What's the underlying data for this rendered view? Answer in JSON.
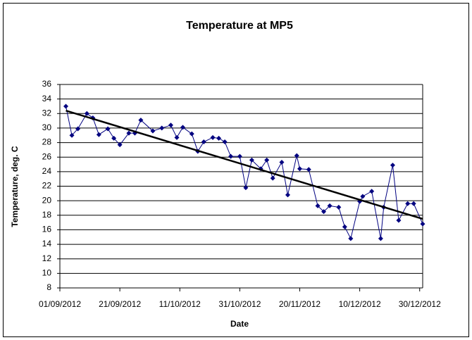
{
  "chart_data": {
    "type": "line",
    "title": "Temperature at MP5",
    "x_label": "Date",
    "y_label": "Temperature, deg. C",
    "x": [
      "2012-09-03",
      "2012-09-05",
      "2012-09-07",
      "2012-09-10",
      "2012-09-12",
      "2012-09-14",
      "2012-09-17",
      "2012-09-19",
      "2012-09-21",
      "2012-09-24",
      "2012-09-26",
      "2012-09-28",
      "2012-10-02",
      "2012-10-05",
      "2012-10-08",
      "2012-10-10",
      "2012-10-12",
      "2012-10-15",
      "2012-10-17",
      "2012-10-19",
      "2012-10-22",
      "2012-10-24",
      "2012-10-26",
      "2012-10-28",
      "2012-10-31",
      "2012-11-02",
      "2012-11-04",
      "2012-11-07",
      "2012-11-09",
      "2012-11-11",
      "2012-11-14",
      "2012-11-16",
      "2012-11-19",
      "2012-11-20",
      "2012-11-23",
      "2012-11-26",
      "2012-11-28",
      "2012-11-30",
      "2012-12-03",
      "2012-12-05",
      "2012-12-07",
      "2012-12-10",
      "2012-12-11",
      "2012-12-14",
      "2012-12-17",
      "2012-12-18",
      "2012-12-21",
      "2012-12-23",
      "2012-12-26",
      "2012-12-28",
      "2012-12-31"
    ],
    "series": [
      {
        "color": "#000080",
        "values": [
          33.0,
          29.0,
          29.9,
          32.0,
          31.4,
          29.1,
          29.9,
          28.6,
          27.7,
          29.3,
          29.3,
          31.1,
          29.6,
          30.0,
          30.4,
          28.7,
          30.1,
          29.2,
          26.8,
          28.1,
          28.7,
          28.6,
          28.1,
          26.1,
          26.1,
          21.8,
          25.6,
          24.4,
          25.6,
          23.1,
          25.3,
          20.8,
          26.2,
          24.4,
          24.3,
          19.3,
          18.5,
          19.3,
          19.1,
          16.4,
          14.8,
          19.9,
          20.6,
          21.3,
          14.8,
          19.1,
          24.9,
          17.3,
          19.6,
          19.6,
          16.8
        ]
      }
    ],
    "trendline": {
      "color": "#000000",
      "x": [
        "2012-09-03",
        "2012-12-31"
      ],
      "values": [
        32.4,
        17.5
      ]
    },
    "xlim": [
      "2012-09-01",
      "2012-12-31"
    ],
    "xticks": [
      {
        "value": "2012-09-01",
        "label": "01/09/2012"
      },
      {
        "value": "2012-09-21",
        "label": "21/09/2012"
      },
      {
        "value": "2012-10-11",
        "label": "11/10/2012"
      },
      {
        "value": "2012-10-31",
        "label": "31/10/2012"
      },
      {
        "value": "2012-11-20",
        "label": "20/11/2012"
      },
      {
        "value": "2012-12-10",
        "label": "10/12/2012"
      },
      {
        "value": "2012-12-30",
        "label": "30/12/2012"
      }
    ],
    "ylim": [
      8,
      36
    ],
    "yticks": [
      8,
      10,
      12,
      14,
      16,
      18,
      20,
      22,
      24,
      26,
      28,
      30,
      32,
      34,
      36
    ],
    "grid": true
  }
}
